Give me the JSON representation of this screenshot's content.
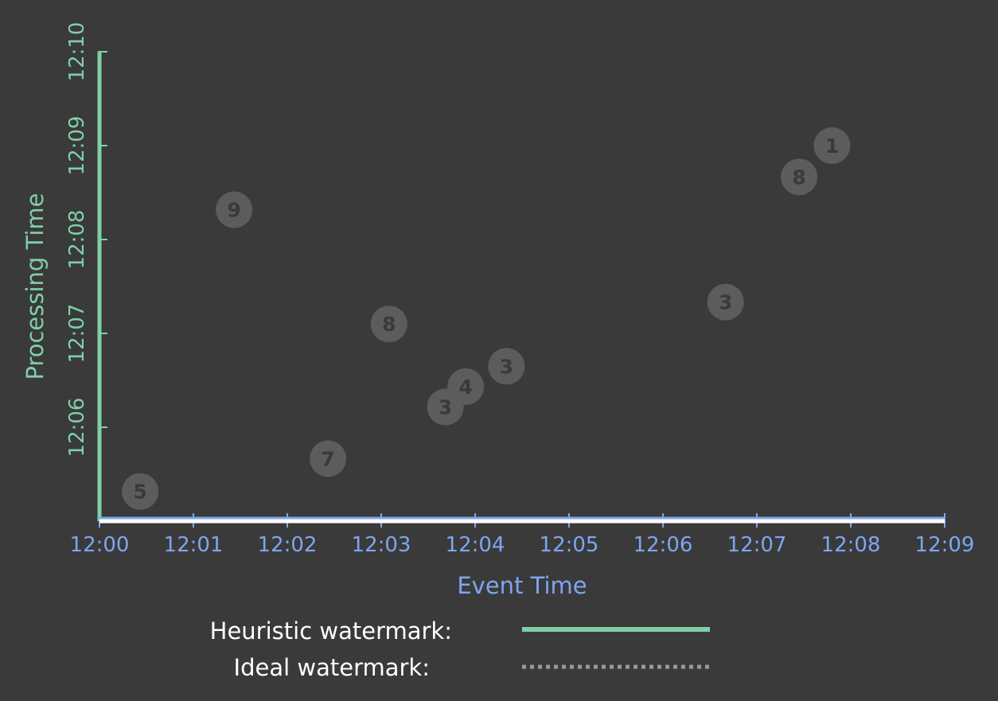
{
  "chart_data": {
    "type": "scatter",
    "xlabel": "Event Time",
    "ylabel": "Processing Time",
    "x_ticks": [
      "12:00",
      "12:01",
      "12:02",
      "12:03",
      "12:04",
      "12:05",
      "12:06",
      "12:07",
      "12:08",
      "12:09"
    ],
    "y_ticks": [
      "12:06",
      "12:07",
      "12:08",
      "12:09",
      "12:10"
    ],
    "xlim": [
      "12:00",
      "12:09"
    ],
    "ylim": [
      "12:05",
      "12:10"
    ],
    "points": [
      {
        "label": "5",
        "x": "12:00:26",
        "y": "12:05:19"
      },
      {
        "label": "9",
        "x": "12:01:26",
        "y": "12:08:19"
      },
      {
        "label": "7",
        "x": "12:02:26",
        "y": "12:05:40"
      },
      {
        "label": "8",
        "x": "12:03:05",
        "y": "12:07:06"
      },
      {
        "label": "3",
        "x": "12:03:41",
        "y": "12:06:13"
      },
      {
        "label": "4",
        "x": "12:03:54",
        "y": "12:06:26"
      },
      {
        "label": "3",
        "x": "12:04:20",
        "y": "12:06:39"
      },
      {
        "label": "3",
        "x": "12:06:40",
        "y": "12:07:20"
      },
      {
        "label": "8",
        "x": "12:07:27",
        "y": "12:08:40"
      },
      {
        "label": "1",
        "x": "12:07:48",
        "y": "12:09:00"
      }
    ],
    "legend": [
      {
        "name": "Heuristic watermark:",
        "color": "#7fcfa8",
        "style": "solid"
      },
      {
        "name": "Ideal watermark:",
        "color": "#9a9a9a",
        "style": "dotted"
      }
    ],
    "colors": {
      "x_axis": "#7da6f0",
      "y_axis": "#7fcfa8",
      "baseline": "#ffffff",
      "point_fill": "#5c5c5c",
      "point_text": "#3a3a3a"
    }
  }
}
